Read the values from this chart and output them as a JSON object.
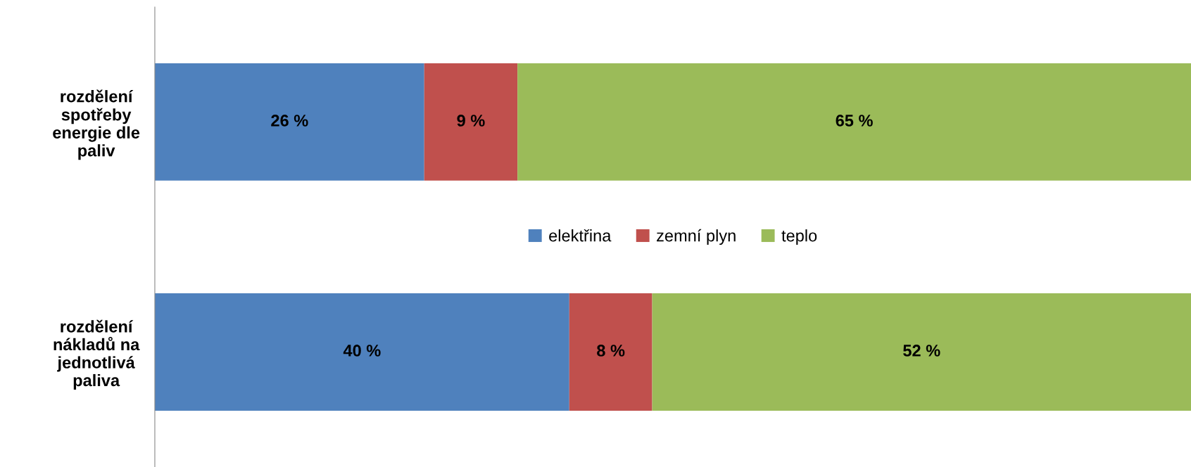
{
  "chart_data": {
    "type": "bar",
    "orientation": "horizontal",
    "stacked": true,
    "categories": [
      "rozdělení\nspotřeby\nenergie dle\npaliv",
      "rozdělení\nnákladů na\njednotlivá\npaliva"
    ],
    "series": [
      {
        "name": "elektřina",
        "color": "#4f81bd",
        "values": [
          26,
          40
        ],
        "value_labels": [
          "26 %",
          "40 %"
        ]
      },
      {
        "name": "zemní plyn",
        "color": "#c0504d",
        "values": [
          9,
          8
        ],
        "value_labels": [
          "9 %",
          "8 %"
        ]
      },
      {
        "name": "teplo",
        "color": "#9bbb59",
        "values": [
          65,
          52
        ],
        "value_labels": [
          "65 %",
          "52 %"
        ]
      }
    ],
    "legend": "center",
    "grid": false
  }
}
